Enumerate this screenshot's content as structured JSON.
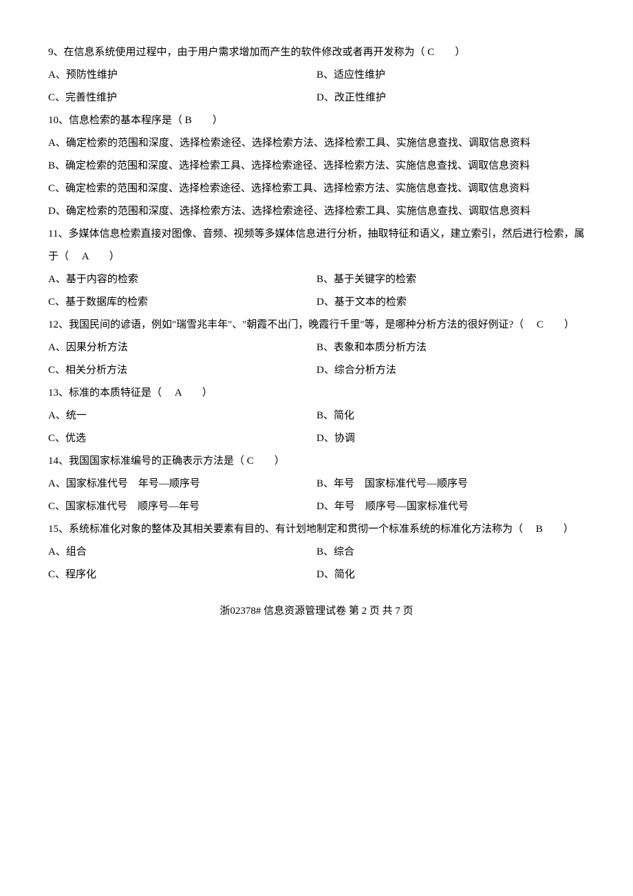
{
  "questions": {
    "q9": {
      "text": "9、在信息系统使用过程中，由于用户需求增加而产生的软件修改或者再开发称为（  C　　）",
      "optA": "A、预防性维护",
      "optB": "B、适应性维护",
      "optC": "C、完善性维护",
      "optD": "D、改正性维护"
    },
    "q10": {
      "text": "10、信息检索的基本程序是（  B　　）",
      "optA": "A、确定检索的范围和深度、选择检索途径、选择检索方法、选择检索工具、实施信息查找、调取信息资料",
      "optB": "B、确定检索的范围和深度、选择检索工具、选择检索途径、选择检索方法、实施信息查找、调取信息资料",
      "optC": "C、确定检索的范围和深度、选择检索途径、选择检索工具、选择检索方法、实施信息查找、调取信息资料",
      "optD": "D、确定检索的范围和深度、选择检索方法、选择检索途径、选择检索工具、实施信息查找、调取信息资料"
    },
    "q11": {
      "text": "11、多媒体信息检索直接对图像、音频、视频等多媒体信息进行分析，抽取特征和语义，建立索引，然后进行检索，属于（　  A　　）",
      "optA": "A、基于内容的检索",
      "optB": "B、基于关键字的检索",
      "optC": "C、基于数据库的检索",
      "optD": "D、基于文本的检索"
    },
    "q12": {
      "text": "12、我国民间的谚语，例如\"瑞雪兆丰年\"、\"朝霞不出门，晚霞行千里\"等，是哪种分析方法的很好例证?（　  C　　）",
      "optA": "A、因果分析方法",
      "optB": "B、表象和本质分析方法",
      "optC": "C、相关分析方法",
      "optD": "D、综合分析方法"
    },
    "q13": {
      "text": "13、标准的本质特征是（　  A　　）",
      "optA": "A、统一",
      "optB": "B、简化",
      "optC": "C、优选",
      "optD": "D、协调"
    },
    "q14": {
      "text": "14、我国国家标准编号的正确表示方法是（  C　　）",
      "optA": "A、国家标准代号　年号—顺序号",
      "optB": "B、年号　国家标准代号—顺序号",
      "optC": "C、国家标准代号　顺序号—年号",
      "optD": "D、年号　顺序号—国家标准代号"
    },
    "q15": {
      "text": "15、系统标准化对象的整体及其相关要素有目的、有计划地制定和贯彻一个标准系统的标准化方法称为（　  B　　）",
      "optA": "A、组合",
      "optB": "B、综合",
      "optC": "C、程序化",
      "optD": "D、简化"
    }
  },
  "footer": "浙02378# 信息资源管理试卷 第 2 页 共 7 页"
}
